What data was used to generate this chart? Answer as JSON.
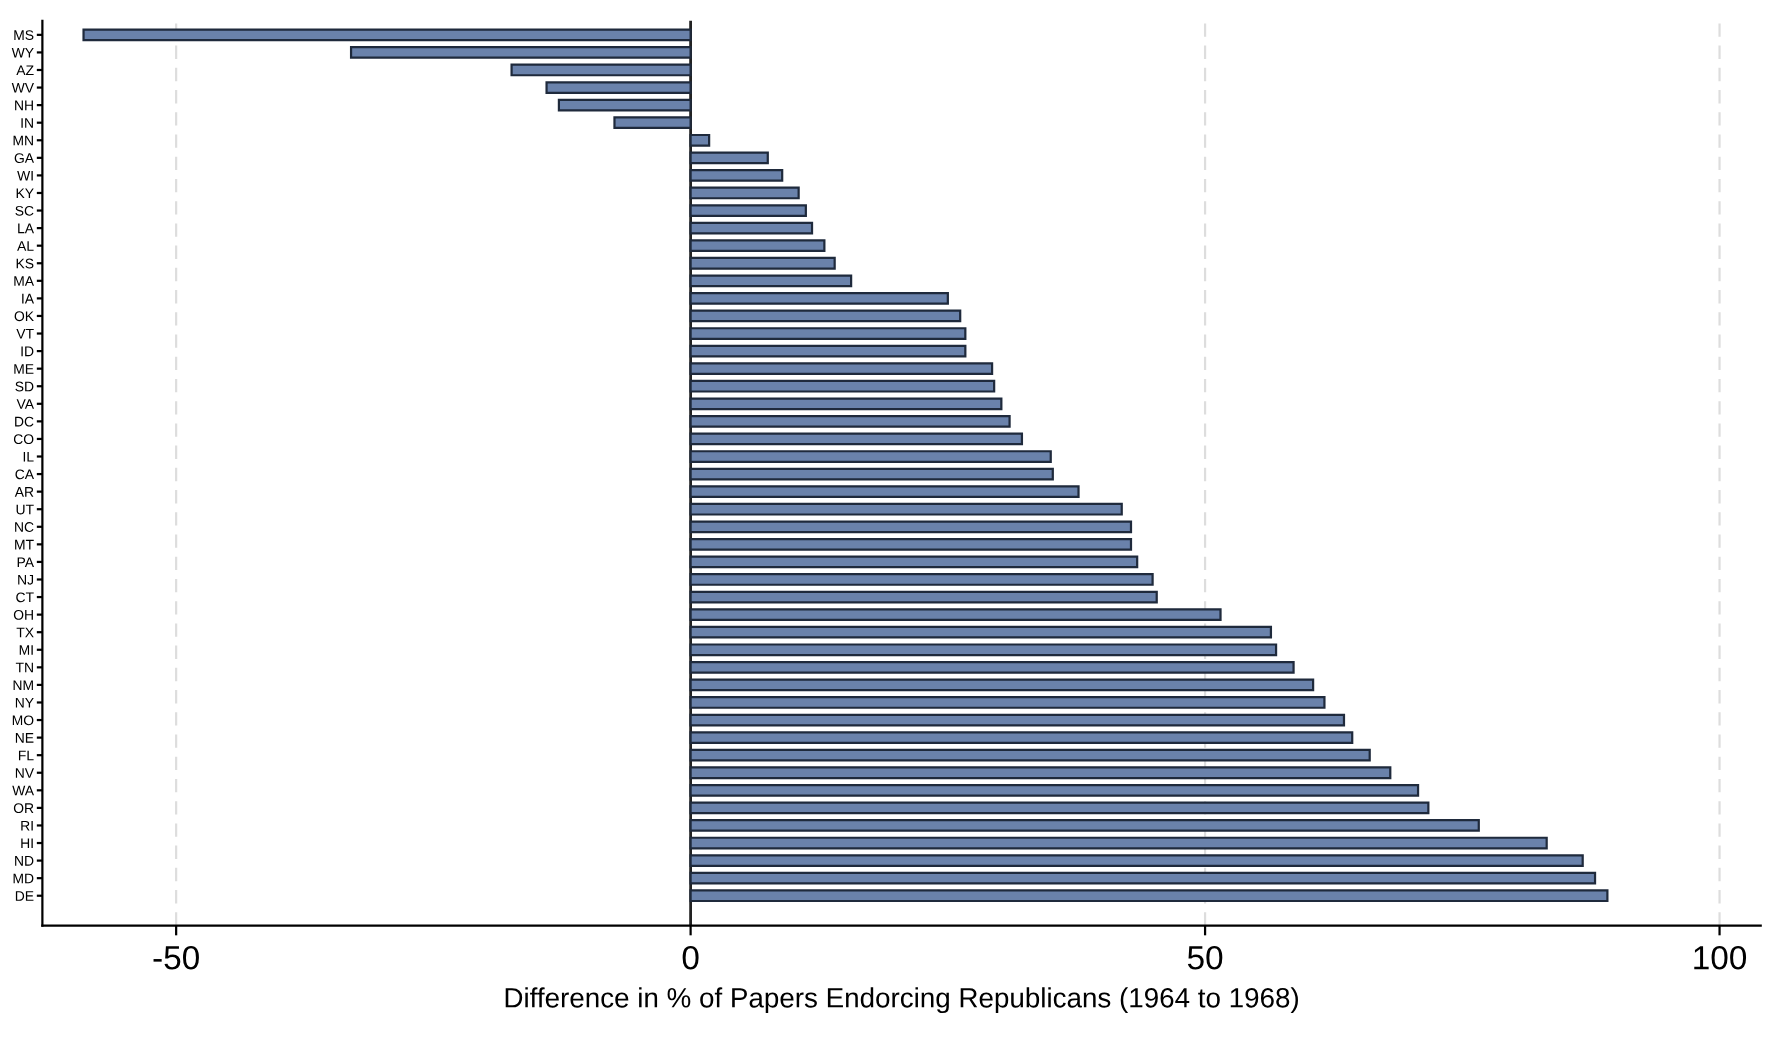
{
  "chart_data": {
    "type": "bar",
    "orientation": "horizontal",
    "xlabel": "Difference in % of Papers Endorcing Republicans (1964 to 1968)",
    "categories": [
      "MS",
      "WY",
      "AZ",
      "WV",
      "NH",
      "IN",
      "MN",
      "GA",
      "WI",
      "KY",
      "SC",
      "LA",
      "AL",
      "KS",
      "MA",
      "IA",
      "OK",
      "VT",
      "ID",
      "ME",
      "SD",
      "VA",
      "DC",
      "CO",
      "IL",
      "CA",
      "AR",
      "UT",
      "NC",
      "MT",
      "PA",
      "NJ",
      "CT",
      "OH",
      "TX",
      "MI",
      "TN",
      "NM",
      "NY",
      "MO",
      "NE",
      "FL",
      "NV",
      "WA",
      "OR",
      "RI",
      "HI",
      "ND",
      "MD",
      "DE"
    ],
    "values": [
      -59,
      -33,
      -17.4,
      -14,
      -12.8,
      -7.4,
      1.8,
      7.5,
      8.9,
      10.5,
      11.2,
      11.8,
      13,
      14,
      15.6,
      25,
      26.2,
      26.7,
      26.7,
      29.3,
      29.5,
      30.2,
      31,
      32.2,
      35,
      35.2,
      37.7,
      41.9,
      42.8,
      42.8,
      43.4,
      44.9,
      45.3,
      51.5,
      56.4,
      56.9,
      58.6,
      60.5,
      61.6,
      63.5,
      64.3,
      66,
      68,
      70.7,
      71.7,
      76.6,
      83.2,
      86.7,
      87.9,
      89.1
    ],
    "color": "#6a82ab",
    "xlim": [
      -63,
      104
    ],
    "xticks": [
      -50,
      0,
      50,
      100
    ],
    "grid": "x"
  }
}
